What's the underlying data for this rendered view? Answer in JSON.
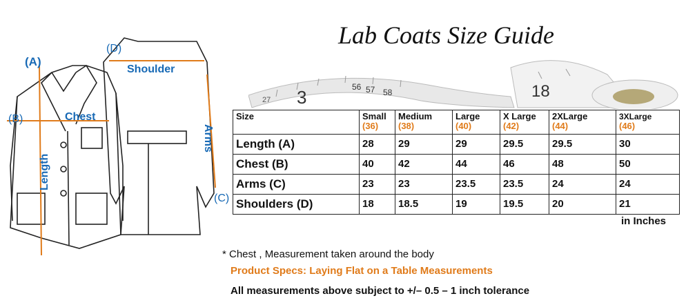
{
  "title": "Lab Coats Size Guide",
  "diagram_labels": {
    "a": "(A)",
    "b": "(B)",
    "c": "(C)",
    "d": "(D)",
    "chest": "Chest",
    "length": "Length",
    "shoulder": "Shoulder",
    "arms": "Arms"
  },
  "tape_numbers": [
    "27",
    "3",
    "56",
    "57",
    "58",
    "18"
  ],
  "table": {
    "header": [
      "Size",
      "Small",
      "Medium",
      "Large",
      "X  Large",
      "2XLarge",
      "3XLarge"
    ],
    "alt_sizes": [
      "(36)",
      "(38)",
      "(40)",
      "(42)",
      "(44)",
      "(46)"
    ],
    "rows": [
      {
        "label": "Length (A)",
        "values": [
          "28",
          "29",
          "29",
          "29.5",
          "29.5",
          "30"
        ]
      },
      {
        "label": "Chest (B)",
        "values": [
          "40",
          "42",
          "44",
          "46",
          "48",
          "50"
        ]
      },
      {
        "label": "Arms (C)",
        "values": [
          "23",
          "23",
          "23.5",
          "23.5",
          "24",
          "24"
        ]
      },
      {
        "label": "Shoulders (D)",
        "values": [
          "18",
          "18.5",
          "19",
          "19.5",
          "20",
          "21"
        ]
      }
    ]
  },
  "units": "in Inches",
  "note": "* Chest , Measurement taken around the body",
  "spec": "Product Specs: Laying Flat on a Table Measurements",
  "tolerance": "All measurements above subject to +/– 0.5 – 1 inch tolerance",
  "colors": {
    "accent_orange": "#e07b1a",
    "label_blue": "#1769b5"
  }
}
